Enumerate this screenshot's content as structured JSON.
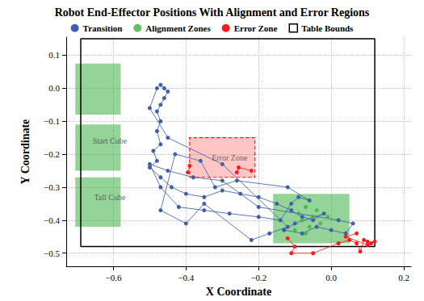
{
  "chart_data": {
    "type": "scatter",
    "title": "Robot End-Effector Positions With Alignment and Error Regions",
    "x_label": "X Coordinate",
    "y_label": "Y Coordinate",
    "xlim": [
      -0.73,
      0.22
    ],
    "ylim": [
      -0.54,
      0.155
    ],
    "xticks": [
      {
        "value": -0.6,
        "label": "−0.6"
      },
      {
        "value": -0.4,
        "label": "−0.4"
      },
      {
        "value": -0.2,
        "label": "−0.2"
      },
      {
        "value": 0.0,
        "label": "0.0"
      },
      0.2
    ],
    "yticks": [
      {
        "value": -0.5,
        "label": "−0.5"
      },
      {
        "value": -0.4,
        "label": "−0.4"
      },
      {
        "value": -0.3,
        "label": "−0.3"
      },
      {
        "value": -0.2,
        "label": "−0.2"
      },
      {
        "value": -0.1,
        "label": "−0.1"
      },
      {
        "value": 0.0,
        "label": "0.0"
      },
      0.1
    ],
    "grid": true,
    "legend": "upper center",
    "series": [
      {
        "name": "Transition",
        "type": "line",
        "marker": "circle",
        "color": "#3f5fa8",
        "x": [
          -0.47,
          -0.46,
          -0.45,
          -0.46,
          -0.47,
          -0.48,
          -0.47,
          -0.48,
          -0.47,
          -0.49,
          -0.48,
          -0.5,
          -0.47,
          -0.44,
          -0.4,
          -0.35,
          -0.3,
          -0.25,
          -0.2,
          -0.15,
          -0.11,
          -0.08,
          -0.05,
          -0.02,
          -0.1,
          -0.13,
          -0.08,
          -0.04,
          0.0,
          0.04,
          0.06,
          0.02,
          -0.2,
          -0.3,
          -0.38,
          -0.45,
          -0.5,
          -0.47,
          -0.42,
          -0.35,
          -0.28,
          -0.2,
          -0.14,
          -0.11,
          -0.09,
          -0.06,
          -0.12,
          -0.26,
          -0.32,
          -0.36,
          -0.43,
          -0.47,
          -0.4,
          -0.35,
          -0.22,
          -0.17,
          -0.12,
          -0.3,
          -0.45,
          -0.5,
          -0.48
        ],
        "y": [
          0.01,
          0.0,
          -0.01,
          -0.03,
          -0.05,
          -0.07,
          -0.1,
          -0.13,
          -0.17,
          -0.19,
          -0.22,
          -0.24,
          -0.27,
          -0.3,
          -0.32,
          -0.33,
          -0.31,
          -0.32,
          -0.33,
          -0.35,
          -0.37,
          -0.39,
          -0.4,
          -0.38,
          -0.41,
          -0.43,
          -0.44,
          -0.42,
          -0.43,
          -0.44,
          -0.41,
          -0.4,
          -0.36,
          -0.28,
          -0.27,
          -0.25,
          -0.23,
          -0.3,
          -0.36,
          -0.37,
          -0.38,
          -0.39,
          -0.4,
          -0.35,
          -0.33,
          -0.34,
          -0.3,
          -0.28,
          -0.3,
          -0.22,
          -0.2,
          -0.37,
          -0.41,
          -0.35,
          -0.46,
          -0.44,
          -0.42,
          -0.23,
          -0.15,
          -0.06,
          0.0
        ]
      },
      {
        "name": "Alignment Zones",
        "type": "scatter",
        "marker": "circle",
        "color": "#3cb043",
        "x": [
          -0.09,
          -0.07,
          -0.05,
          -0.03,
          -0.06,
          -0.08,
          -0.1,
          -0.04,
          -0.01,
          -0.07
        ],
        "y": [
          -0.38,
          -0.36,
          -0.39,
          -0.41,
          -0.42,
          -0.4,
          -0.43,
          -0.37,
          -0.39,
          -0.44
        ],
        "regions": [
          [
            -0.705,
            -0.58,
            -0.08,
            0.075
          ],
          [
            -0.705,
            -0.58,
            -0.25,
            -0.11
          ],
          [
            -0.705,
            -0.58,
            -0.42,
            -0.27
          ],
          [
            -0.16,
            0.05,
            -0.47,
            -0.32
          ]
        ]
      },
      {
        "name": "Error Zone",
        "type": "line",
        "marker": "circle",
        "color": "#ff1a1a",
        "x": [
          -0.39,
          -0.395,
          null,
          -0.26,
          -0.255,
          -0.22,
          null,
          -0.12,
          -0.1,
          -0.11,
          -0.05,
          0.02,
          0.05,
          0.07,
          0.08,
          0.09,
          0.1,
          0.11,
          0.12,
          0.1,
          0.04,
          0.07
        ],
        "y": [
          -0.235,
          -0.255,
          null,
          -0.255,
          -0.24,
          -0.25,
          null,
          -0.455,
          -0.48,
          -0.5,
          -0.5,
          -0.47,
          -0.46,
          -0.47,
          -0.495,
          -0.46,
          -0.465,
          -0.47,
          -0.465,
          -0.475,
          -0.45,
          -0.44
        ],
        "regions": [
          [
            -0.39,
            -0.21,
            -0.27,
            -0.15
          ]
        ]
      },
      {
        "name": "Table Bounds",
        "type": "line",
        "color": "#000000",
        "regions": [
          [
            -0.69,
            0.12,
            -0.48,
            0.15
          ]
        ]
      }
    ],
    "annotations": [
      {
        "text": "Start Cube",
        "x": -0.61,
        "y": -0.16
      },
      {
        "text": "Tall Cube",
        "x": -0.61,
        "y": -0.33
      },
      {
        "text": "Error Zone",
        "x": -0.28,
        "y": -0.21
      }
    ]
  }
}
